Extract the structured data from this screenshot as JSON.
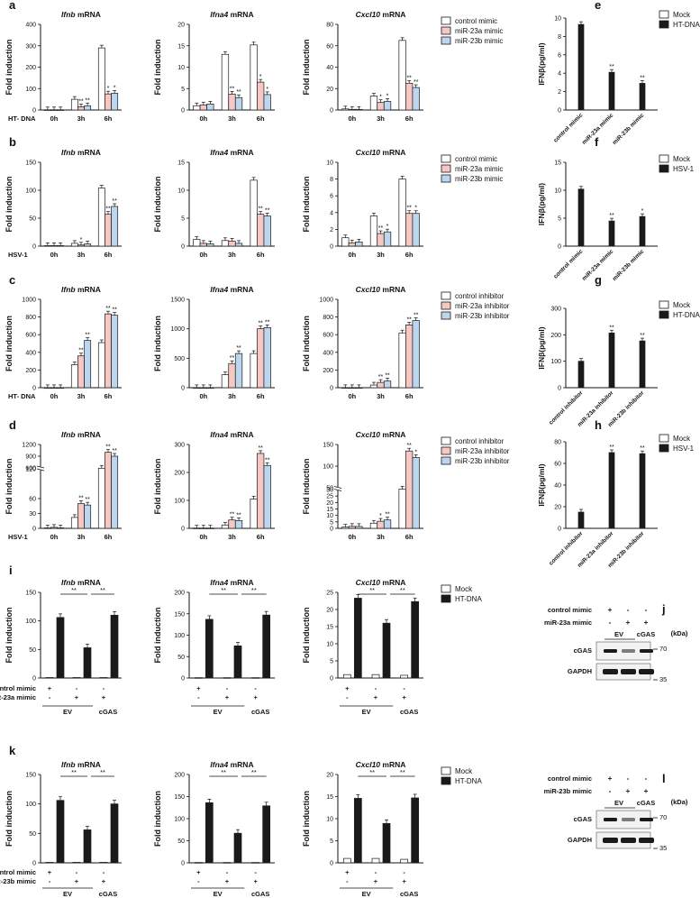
{
  "colors": {
    "control": "#ffffff",
    "miR23a": "#f6c7c3",
    "miR23b": "#bcd6f0",
    "mock": "#ffffff",
    "treat": "#1a1a1a",
    "stroke": "#1a1a1a"
  },
  "legends": {
    "mimic": [
      "control mimic",
      "miR-23a mimic",
      "miR-23b mimic"
    ],
    "inhibitor": [
      "control inhibitor",
      "miR-23a inhibitor",
      "miR-23b inhibitor"
    ],
    "mock_htdna": [
      "Mock",
      "HT-DNA"
    ],
    "mock_hsv": [
      "Mock",
      "HSV-1"
    ]
  },
  "timepoints": [
    "0h",
    "3h",
    "6h"
  ],
  "ylabel_fold": "Fold induction",
  "ylabel_ifn": "IFNβ(pg/ml)",
  "stim_htdna": "HT- DNA",
  "stim_hsv": "HSV-1",
  "sig2": "**",
  "sig1": "*",
  "rowlabels": {
    "control_mimic": "control mimic",
    "mir23a_mimic": "miR-23a mimic",
    "mir23b_mimic": "miR-23b mimic",
    "ev": "EV",
    "cgas": "cGAS",
    "plus": "+",
    "minus": "-"
  },
  "blot": {
    "kda": "(kDa)",
    "cgas": "cGAS",
    "gapdh": "GAPDH",
    "m70": "70",
    "m35": "35"
  },
  "chart_data": [
    {
      "panel": "a",
      "type": "bar",
      "gene": "Ifnb",
      "suffix": " mRNA",
      "stim": "HT- DNA",
      "legend": "mimic",
      "ylim": [
        0,
        400
      ],
      "ticks": [
        0,
        100,
        200,
        300,
        400
      ],
      "categories": [
        "0h",
        "3h",
        "6h"
      ],
      "series": [
        {
          "name": "control mimic",
          "values": [
            1,
            50,
            290
          ]
        },
        {
          "name": "miR-23a mimic",
          "values": [
            1,
            15,
            75
          ]
        },
        {
          "name": "miR-23b mimic",
          "values": [
            1,
            20,
            78
          ]
        }
      ],
      "sig": [
        [
          null,
          "**",
          "*"
        ],
        [
          null,
          "**",
          "*"
        ]
      ]
    },
    {
      "panel": "a",
      "type": "bar",
      "gene": "Ifna4",
      "suffix": " mRNA",
      "stim": "",
      "legend": "",
      "ylim": [
        0,
        20
      ],
      "ticks": [
        0,
        5,
        10,
        15,
        20
      ],
      "categories": [
        "0h",
        "3h",
        "6h"
      ],
      "series": [
        {
          "name": "control mimic",
          "values": [
            1,
            13,
            15.2
          ]
        },
        {
          "name": "miR-23a mimic",
          "values": [
            1.2,
            3.7,
            6.5
          ]
        },
        {
          "name": "miR-23b mimic",
          "values": [
            1.4,
            2.9,
            3.6
          ]
        }
      ],
      "sig": [
        [
          null,
          "**",
          "*"
        ],
        [
          null,
          "**",
          "*"
        ]
      ]
    },
    {
      "panel": "a",
      "type": "bar",
      "gene": "Cxcl10",
      "suffix": " mRNA",
      "stim": "",
      "legend": "",
      "ylim": [
        0,
        80
      ],
      "ticks": [
        0,
        20,
        40,
        60,
        80
      ],
      "categories": [
        "0h",
        "3h",
        "6h"
      ],
      "series": [
        {
          "name": "control mimic",
          "values": [
            1,
            13,
            65
          ]
        },
        {
          "name": "miR-23a mimic",
          "values": [
            0.6,
            7,
            25
          ]
        },
        {
          "name": "miR-23b mimic",
          "values": [
            0.6,
            8,
            21
          ]
        }
      ],
      "sig": [
        [
          null,
          "*",
          "**"
        ],
        [
          null,
          "*",
          "**"
        ]
      ]
    },
    {
      "panel": "b",
      "type": "bar",
      "gene": "Ifnb",
      "suffix": " mRNA",
      "stim": "HSV-1",
      "legend": "mimic",
      "ylim": [
        0,
        150
      ],
      "ticks": [
        0,
        50,
        100,
        150
      ],
      "categories": [
        "0h",
        "3h",
        "6h"
      ],
      "series": [
        {
          "name": "control mimic",
          "values": [
            1,
            5,
            104
          ]
        },
        {
          "name": "miR-23a mimic",
          "values": [
            1,
            2,
            57
          ]
        },
        {
          "name": "miR-23b mimic",
          "values": [
            1,
            4,
            71
          ]
        }
      ],
      "sig": [
        [
          null,
          "*",
          "**"
        ],
        [
          null,
          null,
          "**"
        ]
      ]
    },
    {
      "panel": "b",
      "type": "bar",
      "gene": "Ifna4",
      "suffix": " mRNA",
      "stim": "",
      "legend": "",
      "ylim": [
        0,
        15
      ],
      "ticks": [
        0,
        5,
        10,
        15
      ],
      "categories": [
        "0h",
        "3h",
        "6h"
      ],
      "series": [
        {
          "name": "control mimic",
          "values": [
            1.2,
            1,
            11.8
          ]
        },
        {
          "name": "miR-23a mimic",
          "values": [
            0.5,
            0.9,
            5.7
          ]
        },
        {
          "name": "miR-23b mimic",
          "values": [
            0.4,
            0.5,
            5.4
          ]
        }
      ],
      "sig": [
        [
          null,
          null,
          "**"
        ],
        [
          null,
          null,
          "**"
        ]
      ]
    },
    {
      "panel": "b",
      "type": "bar",
      "gene": "Cxcl10",
      "suffix": " mRNA",
      "stim": "",
      "legend": "",
      "ylim": [
        0,
        10
      ],
      "ticks": [
        0,
        2,
        4,
        6,
        8,
        10
      ],
      "categories": [
        "0h",
        "3h",
        "6h"
      ],
      "series": [
        {
          "name": "control mimic",
          "values": [
            1,
            3.6,
            8
          ]
        },
        {
          "name": "miR-23a mimic",
          "values": [
            0.4,
            1.5,
            3.9
          ]
        },
        {
          "name": "miR-23b mimic",
          "values": [
            0.5,
            1.7,
            3.9
          ]
        }
      ],
      "sig": [
        [
          null,
          "**",
          "**"
        ],
        [
          null,
          "*",
          "*"
        ]
      ]
    },
    {
      "panel": "c",
      "type": "bar",
      "gene": "Ifnb",
      "suffix": " mRNA",
      "stim": "HT- DNA",
      "legend": "inhibitor",
      "ylim": [
        0,
        1000
      ],
      "ticks": [
        0,
        200,
        400,
        600,
        800,
        1000
      ],
      "categories": [
        "0h",
        "3h",
        "6h"
      ],
      "series": [
        {
          "name": "control inhibitor",
          "values": [
            1,
            260,
            510
          ]
        },
        {
          "name": "miR-23a inhibitor",
          "values": [
            1,
            360,
            835
          ]
        },
        {
          "name": "miR-23b inhibitor",
          "values": [
            1,
            535,
            820
          ]
        }
      ],
      "sig": [
        [
          null,
          "**",
          "**"
        ],
        [
          null,
          "**",
          "**"
        ]
      ]
    },
    {
      "panel": "c",
      "type": "bar",
      "gene": "Ifna4",
      "suffix": " mRNA",
      "stim": "",
      "legend": "",
      "ylim": [
        0,
        1500
      ],
      "ticks": [
        0,
        500,
        1000,
        1500
      ],
      "categories": [
        "0h",
        "3h",
        "6h"
      ],
      "series": [
        {
          "name": "control inhibitor",
          "values": [
            1,
            220,
            580
          ]
        },
        {
          "name": "miR-23a inhibitor",
          "values": [
            1,
            410,
            1000
          ]
        },
        {
          "name": "miR-23b inhibitor",
          "values": [
            1,
            580,
            1020
          ]
        }
      ],
      "sig": [
        [
          null,
          "**",
          "**"
        ],
        [
          null,
          "**",
          "**"
        ]
      ]
    },
    {
      "panel": "c",
      "type": "bar",
      "gene": "Cxcl10",
      "suffix": " mRNA",
      "stim": "",
      "legend": "",
      "ylim": [
        0,
        1000
      ],
      "ticks": [
        0,
        200,
        400,
        600,
        800,
        1000
      ],
      "categories": [
        "0h",
        "3h",
        "6h"
      ],
      "series": [
        {
          "name": "control inhibitor",
          "values": [
            1,
            30,
            620
          ]
        },
        {
          "name": "miR-23a inhibitor",
          "values": [
            1,
            60,
            710
          ]
        },
        {
          "name": "miR-23b inhibitor",
          "values": [
            1,
            75,
            760
          ]
        }
      ],
      "sig": [
        [
          null,
          "**",
          "**"
        ],
        [
          null,
          "**",
          "**"
        ]
      ]
    },
    {
      "panel": "d",
      "type": "bar",
      "gene": "Ifnb",
      "suffix": " mRNA",
      "stim": "HSV-1",
      "legend": "inhibitor",
      "broken": true,
      "ylim": [
        0,
        1200
      ],
      "ticks": [
        0,
        30,
        60,
        120,
        600,
        900,
        1200
      ],
      "categories": [
        "0h",
        "3h",
        "6h"
      ],
      "series": [
        {
          "name": "control inhibitor",
          "values": [
            1,
            22,
            450
          ]
        },
        {
          "name": "miR-23a inhibitor",
          "values": [
            2,
            50,
            1000
          ]
        },
        {
          "name": "miR-23b inhibitor",
          "values": [
            1,
            47,
            900
          ]
        }
      ],
      "sig": [
        [
          null,
          "**",
          "**"
        ],
        [
          null,
          "**",
          "**"
        ]
      ]
    },
    {
      "panel": "d",
      "type": "bar",
      "gene": "Ifna4",
      "suffix": " mRNA",
      "stim": "",
      "legend": "",
      "ylim": [
        0,
        300
      ],
      "ticks": [
        0,
        100,
        200,
        300
      ],
      "categories": [
        "0h",
        "3h",
        "6h"
      ],
      "series": [
        {
          "name": "control inhibitor",
          "values": [
            1,
            12,
            105
          ]
        },
        {
          "name": "miR-23a inhibitor",
          "values": [
            1,
            30,
            268
          ]
        },
        {
          "name": "miR-23b inhibitor",
          "values": [
            1,
            28,
            225
          ]
        }
      ],
      "sig": [
        [
          null,
          "**",
          "**"
        ],
        [
          null,
          "**",
          "**"
        ]
      ]
    },
    {
      "panel": "d",
      "type": "bar",
      "gene": "Cxcl10",
      "suffix": " mRNA",
      "stim": "",
      "legend": "",
      "broken": true,
      "ylim": [
        0,
        150
      ],
      "ticks": [
        0,
        5,
        10,
        15,
        20,
        25,
        30,
        50,
        100,
        150
      ],
      "categories": [
        "0h",
        "3h",
        "6h"
      ],
      "series": [
        {
          "name": "control inhibitor",
          "values": [
            1,
            4,
            35
          ]
        },
        {
          "name": "miR-23a inhibitor",
          "values": [
            1.5,
            5.5,
            135
          ]
        },
        {
          "name": "miR-23b inhibitor",
          "values": [
            1.5,
            6.5,
            120
          ]
        }
      ],
      "sig": [
        [
          null,
          "*",
          "**"
        ],
        [
          null,
          "**",
          "*"
        ]
      ]
    },
    {
      "panel": "e",
      "type": "bar",
      "stim": "HT-DNA",
      "legend": "mock_htdna",
      "ylim": [
        0,
        10
      ],
      "ticks": [
        0,
        2,
        4,
        6,
        8,
        10
      ],
      "categories": [
        "control mimic",
        "miR-23a mimic",
        "miR-23b mimic"
      ],
      "series": [
        {
          "name": "Mock",
          "values": [
            0,
            0,
            0
          ]
        },
        {
          "name": "HT-DNA",
          "values": [
            9.3,
            4.1,
            2.9
          ]
        }
      ],
      "sig": [
        null,
        "**",
        "**"
      ]
    },
    {
      "panel": "f",
      "type": "bar",
      "stim": "HSV-1",
      "legend": "mock_hsv",
      "ylim": [
        0,
        15
      ],
      "ticks": [
        0,
        5,
        10,
        15
      ],
      "categories": [
        "control mimic",
        "miR-23a mimic",
        "miR-23b mimic"
      ],
      "series": [
        {
          "name": "Mock",
          "values": [
            0,
            0,
            0
          ]
        },
        {
          "name": "HSV-1",
          "values": [
            10.2,
            4.5,
            5.3
          ]
        }
      ],
      "sig": [
        null,
        "**",
        "*"
      ]
    },
    {
      "panel": "g",
      "type": "bar",
      "stim": "HT-DNA",
      "legend": "mock_htdna",
      "ylim": [
        0,
        300
      ],
      "ticks": [
        0,
        100,
        200,
        300
      ],
      "categories": [
        "control inhibitor",
        "miR-23a inhibitor",
        "miR-23b inhibitor"
      ],
      "series": [
        {
          "name": "Mock",
          "values": [
            0,
            0,
            0
          ]
        },
        {
          "name": "HT-DNA",
          "values": [
            100,
            207,
            177
          ]
        }
      ],
      "sig": [
        null,
        "**",
        "**"
      ]
    },
    {
      "panel": "h",
      "type": "bar",
      "stim": "HSV-1",
      "legend": "mock_hsv",
      "ylim": [
        0,
        80
      ],
      "ticks": [
        0,
        20,
        40,
        60,
        80
      ],
      "categories": [
        "control inhibitor",
        "miR-23a inhibitor",
        "miR-23b inhibitor"
      ],
      "series": [
        {
          "name": "Mock",
          "values": [
            0,
            0,
            0
          ]
        },
        {
          "name": "HSV-1",
          "values": [
            15,
            70,
            69
          ]
        }
      ],
      "sig": [
        null,
        "**",
        "**"
      ]
    },
    {
      "panel": "i",
      "type": "bar",
      "gene": "Ifnb",
      "suffix": " mRNA",
      "mir": "miR-23a mimic",
      "legend": "mock_htdna",
      "ylim": [
        0,
        150
      ],
      "ticks": [
        0,
        50,
        100,
        150
      ],
      "series": [
        {
          "name": "Mock",
          "values": [
            1,
            1,
            1
          ]
        },
        {
          "name": "HT-DNA",
          "values": [
            106,
            53,
            110
          ]
        }
      ]
    },
    {
      "panel": "i",
      "type": "bar",
      "gene": "Ifna4",
      "suffix": " mRNA",
      "ylim": [
        0,
        200
      ],
      "ticks": [
        0,
        50,
        100,
        150,
        200
      ],
      "series": [
        {
          "name": "Mock",
          "values": [
            1,
            1,
            1
          ]
        },
        {
          "name": "HT-DNA",
          "values": [
            137,
            75,
            147
          ]
        }
      ]
    },
    {
      "panel": "i",
      "type": "bar",
      "gene": "Cxcl10",
      "suffix": " mRNA",
      "ylim": [
        0,
        25
      ],
      "ticks": [
        0,
        5,
        10,
        15,
        20,
        25
      ],
      "series": [
        {
          "name": "Mock",
          "values": [
            1,
            1,
            0.8
          ]
        },
        {
          "name": "HT-DNA",
          "values": [
            23.3,
            16,
            22.3
          ]
        }
      ]
    },
    {
      "panel": "k",
      "type": "bar",
      "gene": "Ifnb",
      "suffix": " mRNA",
      "mir": "miR-23b mimic",
      "legend": "mock_htdna",
      "ylim": [
        0,
        150
      ],
      "ticks": [
        0,
        50,
        100,
        150
      ],
      "series": [
        {
          "name": "Mock",
          "values": [
            1,
            1,
            1
          ]
        },
        {
          "name": "HT-DNA",
          "values": [
            106,
            56,
            100
          ]
        }
      ]
    },
    {
      "panel": "k",
      "type": "bar",
      "gene": "Ifna4",
      "suffix": " mRNA",
      "ylim": [
        0,
        200
      ],
      "ticks": [
        0,
        50,
        100,
        150,
        200
      ],
      "series": [
        {
          "name": "Mock",
          "values": [
            1,
            1,
            1
          ]
        },
        {
          "name": "HT-DNA",
          "values": [
            136,
            67,
            129
          ]
        }
      ]
    },
    {
      "panel": "k",
      "type": "bar",
      "gene": "Cxcl10",
      "suffix": " mRNA",
      "ylim": [
        0,
        20
      ],
      "ticks": [
        0,
        5,
        10,
        15,
        20
      ],
      "series": [
        {
          "name": "Mock",
          "values": [
            1,
            1,
            0.8
          ]
        },
        {
          "name": "HT-DNA",
          "values": [
            14.6,
            8.9,
            14.7
          ]
        }
      ]
    }
  ]
}
